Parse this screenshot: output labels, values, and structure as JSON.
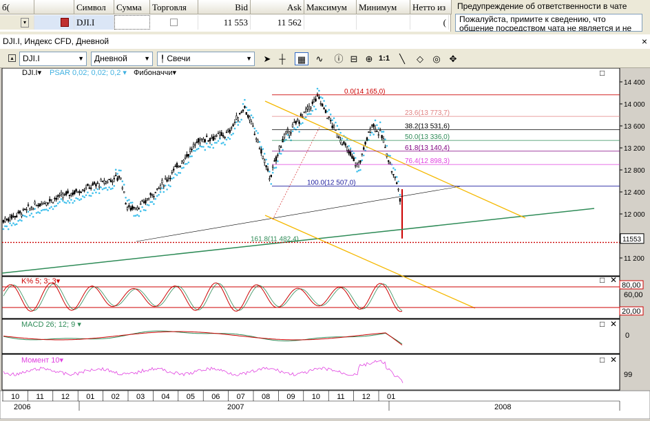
{
  "quotes_table": {
    "headers": [
      "Символ",
      "Сумма",
      "Торговля",
      "Bid",
      "Ask",
      "Максимум",
      "Минимум",
      "Нетто из"
    ],
    "left_stub": "б(",
    "row": {
      "symbol": "DJI.I",
      "amount": "",
      "bid": "11 553",
      "ask": "11 562",
      "max": "",
      "min": "",
      "net": "("
    }
  },
  "warning": {
    "title": "Предупреждение об ответственности в чате",
    "text": "Пожалуйста, примите к сведению, что общение посредством чата не является и не должно"
  },
  "window": {
    "title": "DJI.I, Индекс CFD, Дневной",
    "close": "×"
  },
  "toolbar": {
    "symbol": "DJI.I",
    "period": "Дневной",
    "chart_type": "Свечи",
    "ratio_label": "1:1",
    "icons": [
      "cursor-icon",
      "crosshair-icon",
      "grid-icon",
      "indicator-icon",
      "info-icon",
      "zoom-out-icon",
      "zoom-in-icon",
      "line-tool-icon",
      "eraser-icon",
      "palette-icon",
      "move-icon"
    ]
  },
  "chart_legend": {
    "symbol": "DJI.I▾",
    "psar": "PSAR 0,02; 0,02; 0,2 ▾",
    "fib": "Фибоначчи▾",
    "stoch": "K%  5; 3; 3▾",
    "macd": "MACD 26; 12; 9 ▾",
    "moment": "Момент 10▾"
  },
  "colors": {
    "candle": "#000000",
    "psar": "#3fc0ec",
    "fib_red": "#cc0000",
    "channel": "#f5b800",
    "trend_green": "#2e8b57",
    "stoch": "#cc0000",
    "macd_signal": "#2e8b57",
    "moment": "#e040e0"
  },
  "price_axis": {
    "ticks": [
      "14 400",
      "14 000",
      "13 600",
      "13 200",
      "12 800",
      "12 400",
      "12 000",
      "11 600",
      "11 200"
    ],
    "current": "11553"
  },
  "fib_levels": [
    {
      "label": "0.0(14 165,0)",
      "value": 14165
    },
    {
      "label": "23.6(13 773,7)",
      "value": 13773.7
    },
    {
      "label": "38.2(13 531,6)",
      "value": 13531.6
    },
    {
      "label": "50.0(13 336,0)",
      "value": 13336
    },
    {
      "label": "61.8(13 140,4)",
      "value": 13140.4
    },
    {
      "label": "76.4(12 898,3)",
      "value": 12898.3
    },
    {
      "label": "100.0(12 507,0)",
      "value": 12507
    },
    {
      "label": "161.8(11 482,4)",
      "value": 11482.4
    }
  ],
  "stoch_axis": {
    "upper": "80,00",
    "mid": "60,00",
    "lower": "20,00"
  },
  "macd_axis": {
    "zero": "0"
  },
  "moment_axis": {
    "value": "99"
  },
  "time_axis": {
    "months": [
      "10",
      "11",
      "12",
      "01",
      "02",
      "03",
      "04",
      "05",
      "06",
      "07",
      "08",
      "09",
      "10",
      "11",
      "12",
      "01"
    ],
    "years": [
      "2006",
      "2007",
      "2008"
    ]
  },
  "panel_controls": {
    "maximize": "□",
    "close": "✕"
  }
}
